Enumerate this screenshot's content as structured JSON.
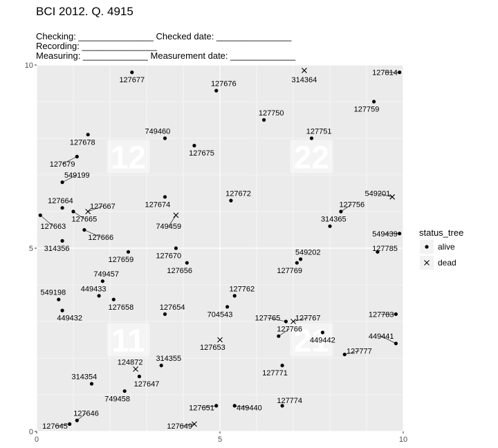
{
  "chart_data": {
    "type": "scatter",
    "title": "BCI 2012. Q. 4915",
    "header_lines": [
      "Checking: _______________ Checked date: _______________",
      "Recording: _______________",
      "Measuring: _____________ Measurement date: _____________"
    ],
    "xlim": [
      0,
      10
    ],
    "ylim": [
      0,
      10
    ],
    "x_ticks": [
      0,
      5,
      10
    ],
    "y_ticks": [
      0,
      5,
      10
    ],
    "grid": true,
    "quadrant_labels": [
      {
        "text": "12",
        "x": 2.5,
        "y": 7.5
      },
      {
        "text": "22",
        "x": 7.5,
        "y": 7.5
      },
      {
        "text": "11",
        "x": 2.5,
        "y": 2.5
      },
      {
        "text": "21",
        "x": 7.5,
        "y": 2.5
      }
    ],
    "legend": {
      "title": "status_tree",
      "entries": [
        {
          "name": "alive",
          "marker": "dot"
        },
        {
          "name": "dead",
          "marker": "cross"
        }
      ],
      "position": "right"
    },
    "points": [
      {
        "tag": "127677",
        "x": 2.6,
        "y": 9.8,
        "status": "alive",
        "lx": 2.6,
        "ly": 9.6
      },
      {
        "tag": "127676",
        "x": 4.9,
        "y": 9.3,
        "status": "alive",
        "lx": 5.1,
        "ly": 9.5
      },
      {
        "tag": "314364",
        "x": 7.3,
        "y": 9.85,
        "status": "dead",
        "lx": 7.3,
        "ly": 9.6
      },
      {
        "tag": "127814",
        "x": 9.9,
        "y": 9.8,
        "status": "alive",
        "lx": 9.5,
        "ly": 9.8
      },
      {
        "tag": "127759",
        "x": 9.2,
        "y": 9.0,
        "status": "alive",
        "lx": 9.0,
        "ly": 8.8
      },
      {
        "tag": "127750",
        "x": 6.2,
        "y": 8.5,
        "status": "alive",
        "lx": 6.4,
        "ly": 8.7
      },
      {
        "tag": "749460",
        "x": 3.5,
        "y": 8.0,
        "status": "alive",
        "lx": 3.3,
        "ly": 8.2
      },
      {
        "tag": "127751",
        "x": 7.5,
        "y": 8.0,
        "status": "alive",
        "lx": 7.7,
        "ly": 8.2
      },
      {
        "tag": "127678",
        "x": 1.4,
        "y": 8.1,
        "status": "alive",
        "lx": 1.25,
        "ly": 7.9
      },
      {
        "tag": "127675",
        "x": 4.3,
        "y": 7.8,
        "status": "alive",
        "lx": 4.5,
        "ly": 7.6
      },
      {
        "tag": "127679",
        "x": 1.1,
        "y": 7.5,
        "status": "alive",
        "lx": 0.7,
        "ly": 7.3
      },
      {
        "tag": "549199",
        "x": 0.7,
        "y": 6.8,
        "status": "alive",
        "lx": 1.1,
        "ly": 7.0
      },
      {
        "tag": "549201",
        "x": 9.7,
        "y": 6.4,
        "status": "dead",
        "lx": 9.3,
        "ly": 6.5
      },
      {
        "tag": "127672",
        "x": 5.3,
        "y": 6.3,
        "status": "alive",
        "lx": 5.5,
        "ly": 6.5
      },
      {
        "tag": "127674",
        "x": 3.5,
        "y": 6.4,
        "status": "alive",
        "lx": 3.3,
        "ly": 6.2
      },
      {
        "tag": "127664",
        "x": 0.7,
        "y": 6.1,
        "status": "alive",
        "lx": 0.65,
        "ly": 6.3
      },
      {
        "tag": "127667",
        "x": 1.4,
        "y": 6.0,
        "status": "dead",
        "lx": 1.8,
        "ly": 6.15
      },
      {
        "tag": "127756",
        "x": 8.3,
        "y": 6.0,
        "status": "alive",
        "lx": 8.6,
        "ly": 6.2
      },
      {
        "tag": "127665",
        "x": 1.0,
        "y": 6.0,
        "status": "alive",
        "lx": 1.3,
        "ly": 5.8
      },
      {
        "tag": "127663",
        "x": 0.1,
        "y": 5.9,
        "status": "alive",
        "lx": 0.45,
        "ly": 5.6
      },
      {
        "tag": "749459",
        "x": 3.8,
        "y": 5.9,
        "status": "dead",
        "lx": 3.6,
        "ly": 5.6
      },
      {
        "tag": "314365",
        "x": 8.0,
        "y": 5.6,
        "status": "alive",
        "lx": 8.1,
        "ly": 5.8
      },
      {
        "tag": "549439",
        "x": 9.9,
        "y": 5.4,
        "status": "alive",
        "lx": 9.5,
        "ly": 5.4
      },
      {
        "tag": "127666",
        "x": 1.3,
        "y": 5.5,
        "status": "alive",
        "lx": 1.75,
        "ly": 5.3
      },
      {
        "tag": "314356",
        "x": 0.7,
        "y": 5.2,
        "status": "alive",
        "lx": 0.55,
        "ly": 5.0
      },
      {
        "tag": "127785",
        "x": 9.3,
        "y": 4.9,
        "status": "alive",
        "lx": 9.5,
        "ly": 5.0
      },
      {
        "tag": "549202",
        "x": 7.2,
        "y": 4.7,
        "status": "alive",
        "lx": 7.4,
        "ly": 4.9
      },
      {
        "tag": "127670",
        "x": 3.8,
        "y": 5.0,
        "status": "alive",
        "lx": 3.6,
        "ly": 4.8
      },
      {
        "tag": "127659",
        "x": 2.5,
        "y": 4.9,
        "status": "alive",
        "lx": 2.3,
        "ly": 4.7
      },
      {
        "tag": "127769",
        "x": 7.1,
        "y": 4.6,
        "status": "alive",
        "lx": 6.9,
        "ly": 4.4
      },
      {
        "tag": "127656",
        "x": 4.1,
        "y": 4.6,
        "status": "alive",
        "lx": 3.9,
        "ly": 4.4
      },
      {
        "tag": "749457",
        "x": 1.8,
        "y": 4.1,
        "status": "alive",
        "lx": 1.9,
        "ly": 4.3
      },
      {
        "tag": "449433",
        "x": 1.7,
        "y": 3.7,
        "status": "alive",
        "lx": 1.55,
        "ly": 3.9
      },
      {
        "tag": "127762",
        "x": 5.4,
        "y": 3.7,
        "status": "alive",
        "lx": 5.6,
        "ly": 3.9
      },
      {
        "tag": "549198",
        "x": 0.6,
        "y": 3.6,
        "status": "alive",
        "lx": 0.45,
        "ly": 3.8
      },
      {
        "tag": "127658",
        "x": 2.1,
        "y": 3.6,
        "status": "alive",
        "lx": 2.3,
        "ly": 3.4
      },
      {
        "tag": "704543",
        "x": 5.2,
        "y": 3.4,
        "status": "alive",
        "lx": 5.0,
        "ly": 3.2
      },
      {
        "tag": "127654",
        "x": 3.5,
        "y": 3.2,
        "status": "alive",
        "lx": 3.7,
        "ly": 3.4
      },
      {
        "tag": "449432",
        "x": 0.7,
        "y": 3.3,
        "status": "alive",
        "lx": 0.9,
        "ly": 3.1
      },
      {
        "tag": "127783",
        "x": 9.8,
        "y": 3.2,
        "status": "alive",
        "lx": 9.4,
        "ly": 3.2
      },
      {
        "tag": "127765",
        "x": 6.8,
        "y": 3.0,
        "status": "alive",
        "lx": 6.3,
        "ly": 3.1
      },
      {
        "tag": "127767",
        "x": 7.0,
        "y": 3.0,
        "status": "dead",
        "lx": 7.4,
        "ly": 3.1
      },
      {
        "tag": "127766",
        "x": 6.6,
        "y": 2.6,
        "status": "alive",
        "lx": 6.9,
        "ly": 2.8
      },
      {
        "tag": "127653",
        "x": 5.0,
        "y": 2.5,
        "status": "dead",
        "lx": 4.8,
        "ly": 2.3
      },
      {
        "tag": "449442",
        "x": 7.8,
        "y": 2.7,
        "status": "alive",
        "lx": 7.8,
        "ly": 2.5
      },
      {
        "tag": "449441",
        "x": 9.8,
        "y": 2.4,
        "status": "alive",
        "lx": 9.4,
        "ly": 2.6
      },
      {
        "tag": "127777",
        "x": 8.4,
        "y": 2.1,
        "status": "alive",
        "lx": 8.8,
        "ly": 2.2
      },
      {
        "tag": "124872",
        "x": 2.7,
        "y": 1.7,
        "status": "dead",
        "lx": 2.55,
        "ly": 1.9
      },
      {
        "tag": "314355",
        "x": 3.4,
        "y": 1.8,
        "status": "alive",
        "lx": 3.6,
        "ly": 2.0
      },
      {
        "tag": "127771",
        "x": 6.7,
        "y": 1.8,
        "status": "alive",
        "lx": 6.5,
        "ly": 1.6
      },
      {
        "tag": "127647",
        "x": 2.8,
        "y": 1.5,
        "status": "alive",
        "lx": 3.0,
        "ly": 1.3
      },
      {
        "tag": "314354",
        "x": 1.5,
        "y": 1.3,
        "status": "alive",
        "lx": 1.3,
        "ly": 1.5
      },
      {
        "tag": "749458",
        "x": 2.4,
        "y": 1.1,
        "status": "alive",
        "lx": 2.2,
        "ly": 0.9
      },
      {
        "tag": "127774",
        "x": 6.7,
        "y": 0.7,
        "status": "alive",
        "lx": 6.9,
        "ly": 0.85
      },
      {
        "tag": "127651",
        "x": 4.9,
        "y": 0.7,
        "status": "alive",
        "lx": 4.5,
        "ly": 0.65
      },
      {
        "tag": "449440",
        "x": 5.4,
        "y": 0.7,
        "status": "alive",
        "lx": 5.8,
        "ly": 0.65
      },
      {
        "tag": "127646",
        "x": 1.1,
        "y": 0.3,
        "status": "alive",
        "lx": 1.35,
        "ly": 0.5
      },
      {
        "tag": "127645",
        "x": 0.9,
        "y": 0.2,
        "status": "alive",
        "lx": 0.5,
        "ly": 0.15
      },
      {
        "tag": "127649",
        "x": 4.3,
        "y": 0.2,
        "status": "dead",
        "lx": 3.9,
        "ly": 0.15
      }
    ]
  }
}
